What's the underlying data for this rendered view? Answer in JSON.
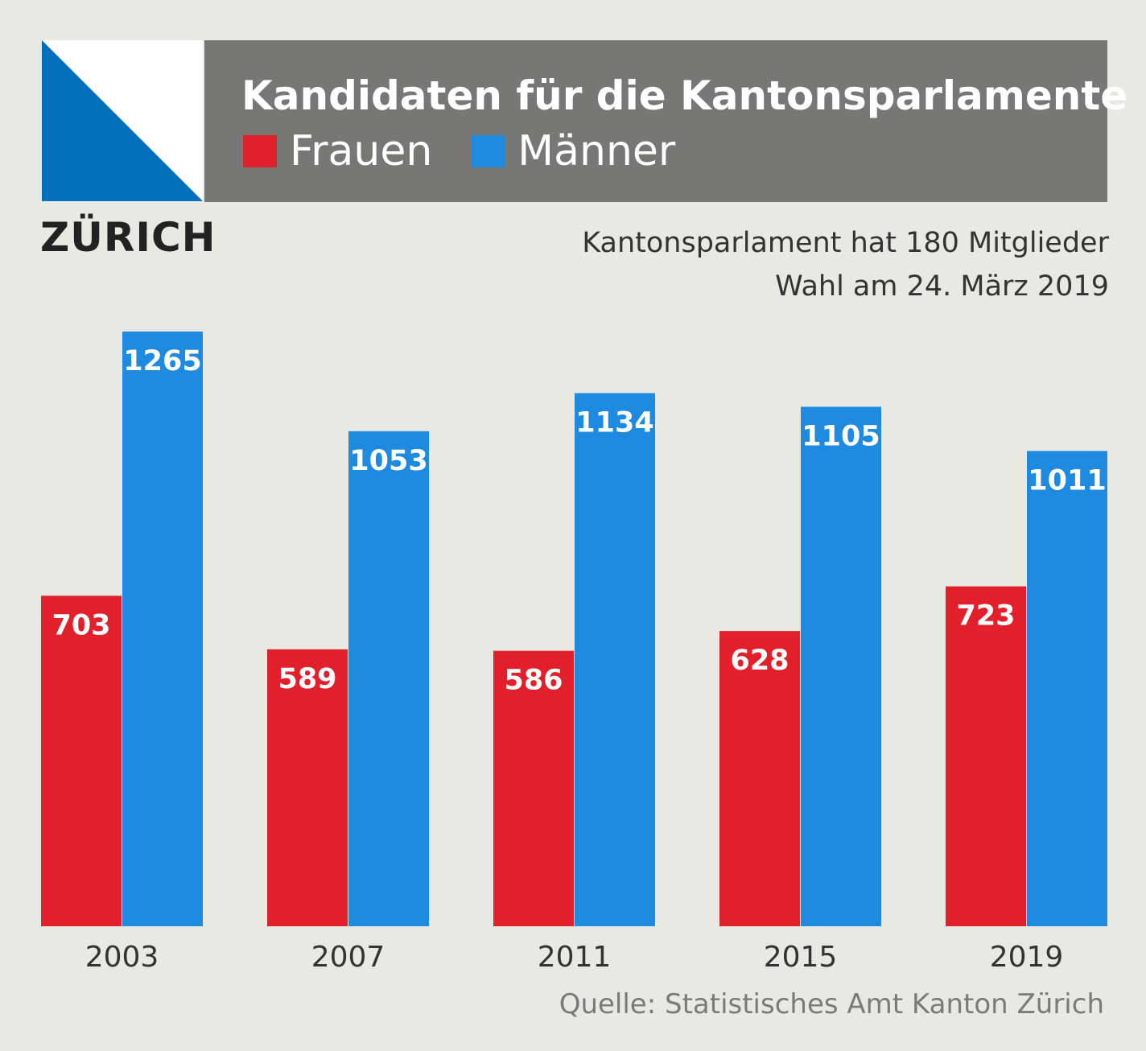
{
  "header": {
    "title": "Kandidaten für die Kantonsparlamente",
    "legend": [
      {
        "label": "Frauen",
        "color": "#e2202c"
      },
      {
        "label": "Männer",
        "color": "#1e8be0"
      }
    ]
  },
  "canton": "ZÜRICH",
  "notes": {
    "line1": "Kantonsparlament hat 180 Mitglieder",
    "line2": "Wahl am 24. März 2019"
  },
  "source": "Quelle: Statistisches Amt Kanton Zürich",
  "flag": {
    "blue": "#0070ba",
    "white": "#ffffff"
  },
  "chart_data": {
    "type": "bar",
    "categories": [
      "2003",
      "2007",
      "2011",
      "2015",
      "2019"
    ],
    "series": [
      {
        "name": "Frauen",
        "color": "#e2202c",
        "values": [
          703,
          589,
          586,
          628,
          723
        ]
      },
      {
        "name": "Männer",
        "color": "#1e8be0",
        "values": [
          1265,
          1053,
          1134,
          1105,
          1011
        ]
      }
    ],
    "title": "Kandidaten für die Kantonsparlamente",
    "xlabel": "",
    "ylabel": "",
    "ylim": [
      0,
      1265
    ],
    "grid": false,
    "legend": "top"
  }
}
